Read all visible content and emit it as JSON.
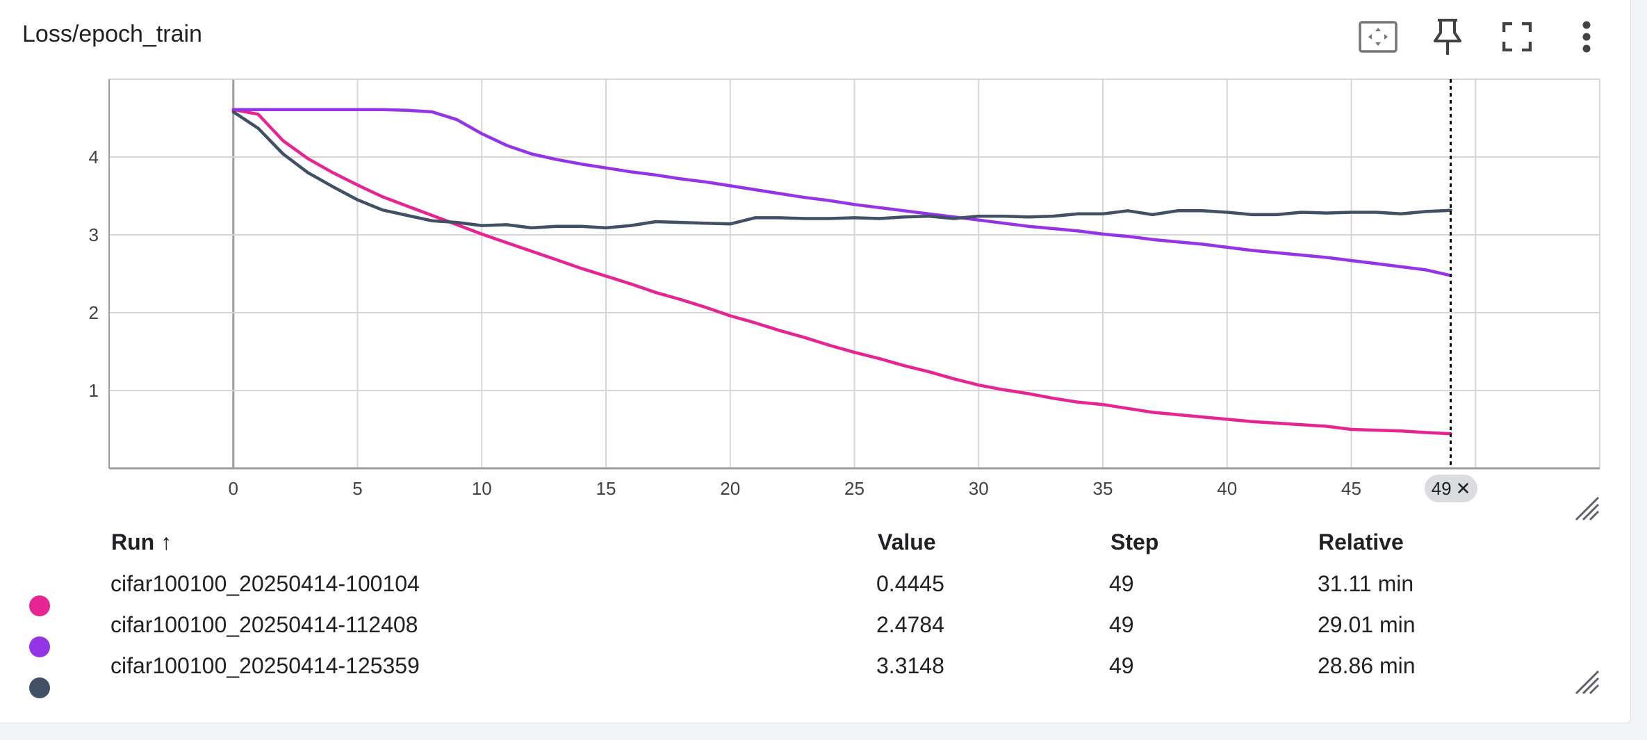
{
  "card": {
    "title": "Loss/epoch_train",
    "toolbar": [
      "fit-domain-icon",
      "pin-icon",
      "fullscreen-icon",
      "more-vert-icon"
    ]
  },
  "chart_data": {
    "type": "line",
    "title": "Loss/epoch_train",
    "xlabel": "",
    "ylabel": "",
    "xlim": [
      -5,
      55
    ],
    "ylim": [
      0,
      5
    ],
    "grid": true,
    "x_ticks": [
      0,
      5,
      10,
      15,
      20,
      25,
      30,
      35,
      40,
      45
    ],
    "y_ticks": [
      1,
      2,
      3,
      4
    ],
    "x_tick_labels": [
      "0",
      "5",
      "10",
      "15",
      "20",
      "25",
      "30",
      "35",
      "40",
      "45"
    ],
    "y_tick_labels": [
      "1",
      "2",
      "3",
      "4"
    ],
    "hover_step": 49,
    "hover_label": "49",
    "series": [
      {
        "name": "cifar100100_20250414-100104",
        "color": "#e52592",
        "x": [
          0,
          1,
          2,
          3,
          4,
          5,
          6,
          7,
          8,
          9,
          10,
          11,
          12,
          13,
          14,
          15,
          16,
          17,
          18,
          19,
          20,
          21,
          22,
          23,
          24,
          25,
          26,
          27,
          28,
          29,
          30,
          31,
          32,
          33,
          34,
          35,
          36,
          37,
          38,
          39,
          40,
          41,
          42,
          43,
          44,
          45,
          46,
          47,
          48,
          49
        ],
        "y": [
          4.61,
          4.55,
          4.21,
          3.98,
          3.8,
          3.64,
          3.49,
          3.37,
          3.25,
          3.13,
          3.01,
          2.9,
          2.79,
          2.68,
          2.57,
          2.47,
          2.37,
          2.26,
          2.17,
          2.07,
          1.96,
          1.87,
          1.77,
          1.68,
          1.58,
          1.49,
          1.41,
          1.32,
          1.24,
          1.15,
          1.07,
          1.01,
          0.96,
          0.9,
          0.85,
          0.82,
          0.77,
          0.72,
          0.69,
          0.66,
          0.63,
          0.6,
          0.58,
          0.56,
          0.54,
          0.5,
          0.49,
          0.48,
          0.46,
          0.4445
        ]
      },
      {
        "name": "cifar100100_20250414-112408",
        "color": "#9334e6",
        "x": [
          0,
          1,
          2,
          3,
          4,
          5,
          6,
          7,
          8,
          9,
          10,
          11,
          12,
          13,
          14,
          15,
          16,
          17,
          18,
          19,
          20,
          21,
          22,
          23,
          24,
          25,
          26,
          27,
          28,
          29,
          30,
          31,
          32,
          33,
          34,
          35,
          36,
          37,
          38,
          39,
          40,
          41,
          42,
          43,
          44,
          45,
          46,
          47,
          48,
          49
        ],
        "y": [
          4.61,
          4.61,
          4.61,
          4.61,
          4.61,
          4.61,
          4.61,
          4.6,
          4.58,
          4.48,
          4.3,
          4.15,
          4.04,
          3.97,
          3.91,
          3.86,
          3.81,
          3.77,
          3.72,
          3.68,
          3.63,
          3.58,
          3.53,
          3.48,
          3.44,
          3.39,
          3.35,
          3.31,
          3.27,
          3.23,
          3.19,
          3.15,
          3.11,
          3.08,
          3.05,
          3.01,
          2.98,
          2.94,
          2.91,
          2.88,
          2.84,
          2.8,
          2.77,
          2.74,
          2.71,
          2.67,
          2.63,
          2.59,
          2.55,
          2.4784
        ]
      },
      {
        "name": "cifar100100_20250414-125359",
        "color": "#425066",
        "x": [
          0,
          1,
          2,
          3,
          4,
          5,
          6,
          7,
          8,
          9,
          10,
          11,
          12,
          13,
          14,
          15,
          16,
          17,
          18,
          19,
          20,
          21,
          22,
          23,
          24,
          25,
          26,
          27,
          28,
          29,
          30,
          31,
          32,
          33,
          34,
          35,
          36,
          37,
          38,
          39,
          40,
          41,
          42,
          43,
          44,
          45,
          46,
          47,
          48,
          49
        ],
        "y": [
          4.58,
          4.37,
          4.04,
          3.8,
          3.62,
          3.45,
          3.32,
          3.25,
          3.18,
          3.16,
          3.12,
          3.13,
          3.09,
          3.11,
          3.11,
          3.09,
          3.12,
          3.17,
          3.16,
          3.15,
          3.14,
          3.22,
          3.22,
          3.21,
          3.21,
          3.22,
          3.21,
          3.23,
          3.24,
          3.21,
          3.24,
          3.24,
          3.23,
          3.24,
          3.27,
          3.27,
          3.31,
          3.26,
          3.31,
          3.31,
          3.29,
          3.26,
          3.26,
          3.29,
          3.28,
          3.29,
          3.29,
          3.27,
          3.3,
          3.3148
        ]
      }
    ]
  },
  "table": {
    "columns": {
      "run": "Run",
      "sort_arrow": "↑",
      "value": "Value",
      "step": "Step",
      "relative": "Relative"
    },
    "rows": [
      {
        "run": "cifar100100_20250414-100104",
        "value": "0.4445",
        "step": "49",
        "relative": "31.11 min",
        "color": "#e52592"
      },
      {
        "run": "cifar100100_20250414-112408",
        "value": "2.4784",
        "step": "49",
        "relative": "29.01 min",
        "color": "#9334e6"
      },
      {
        "run": "cifar100100_20250414-125359",
        "value": "3.3148",
        "step": "49",
        "relative": "28.86 min",
        "color": "#425066"
      }
    ]
  }
}
